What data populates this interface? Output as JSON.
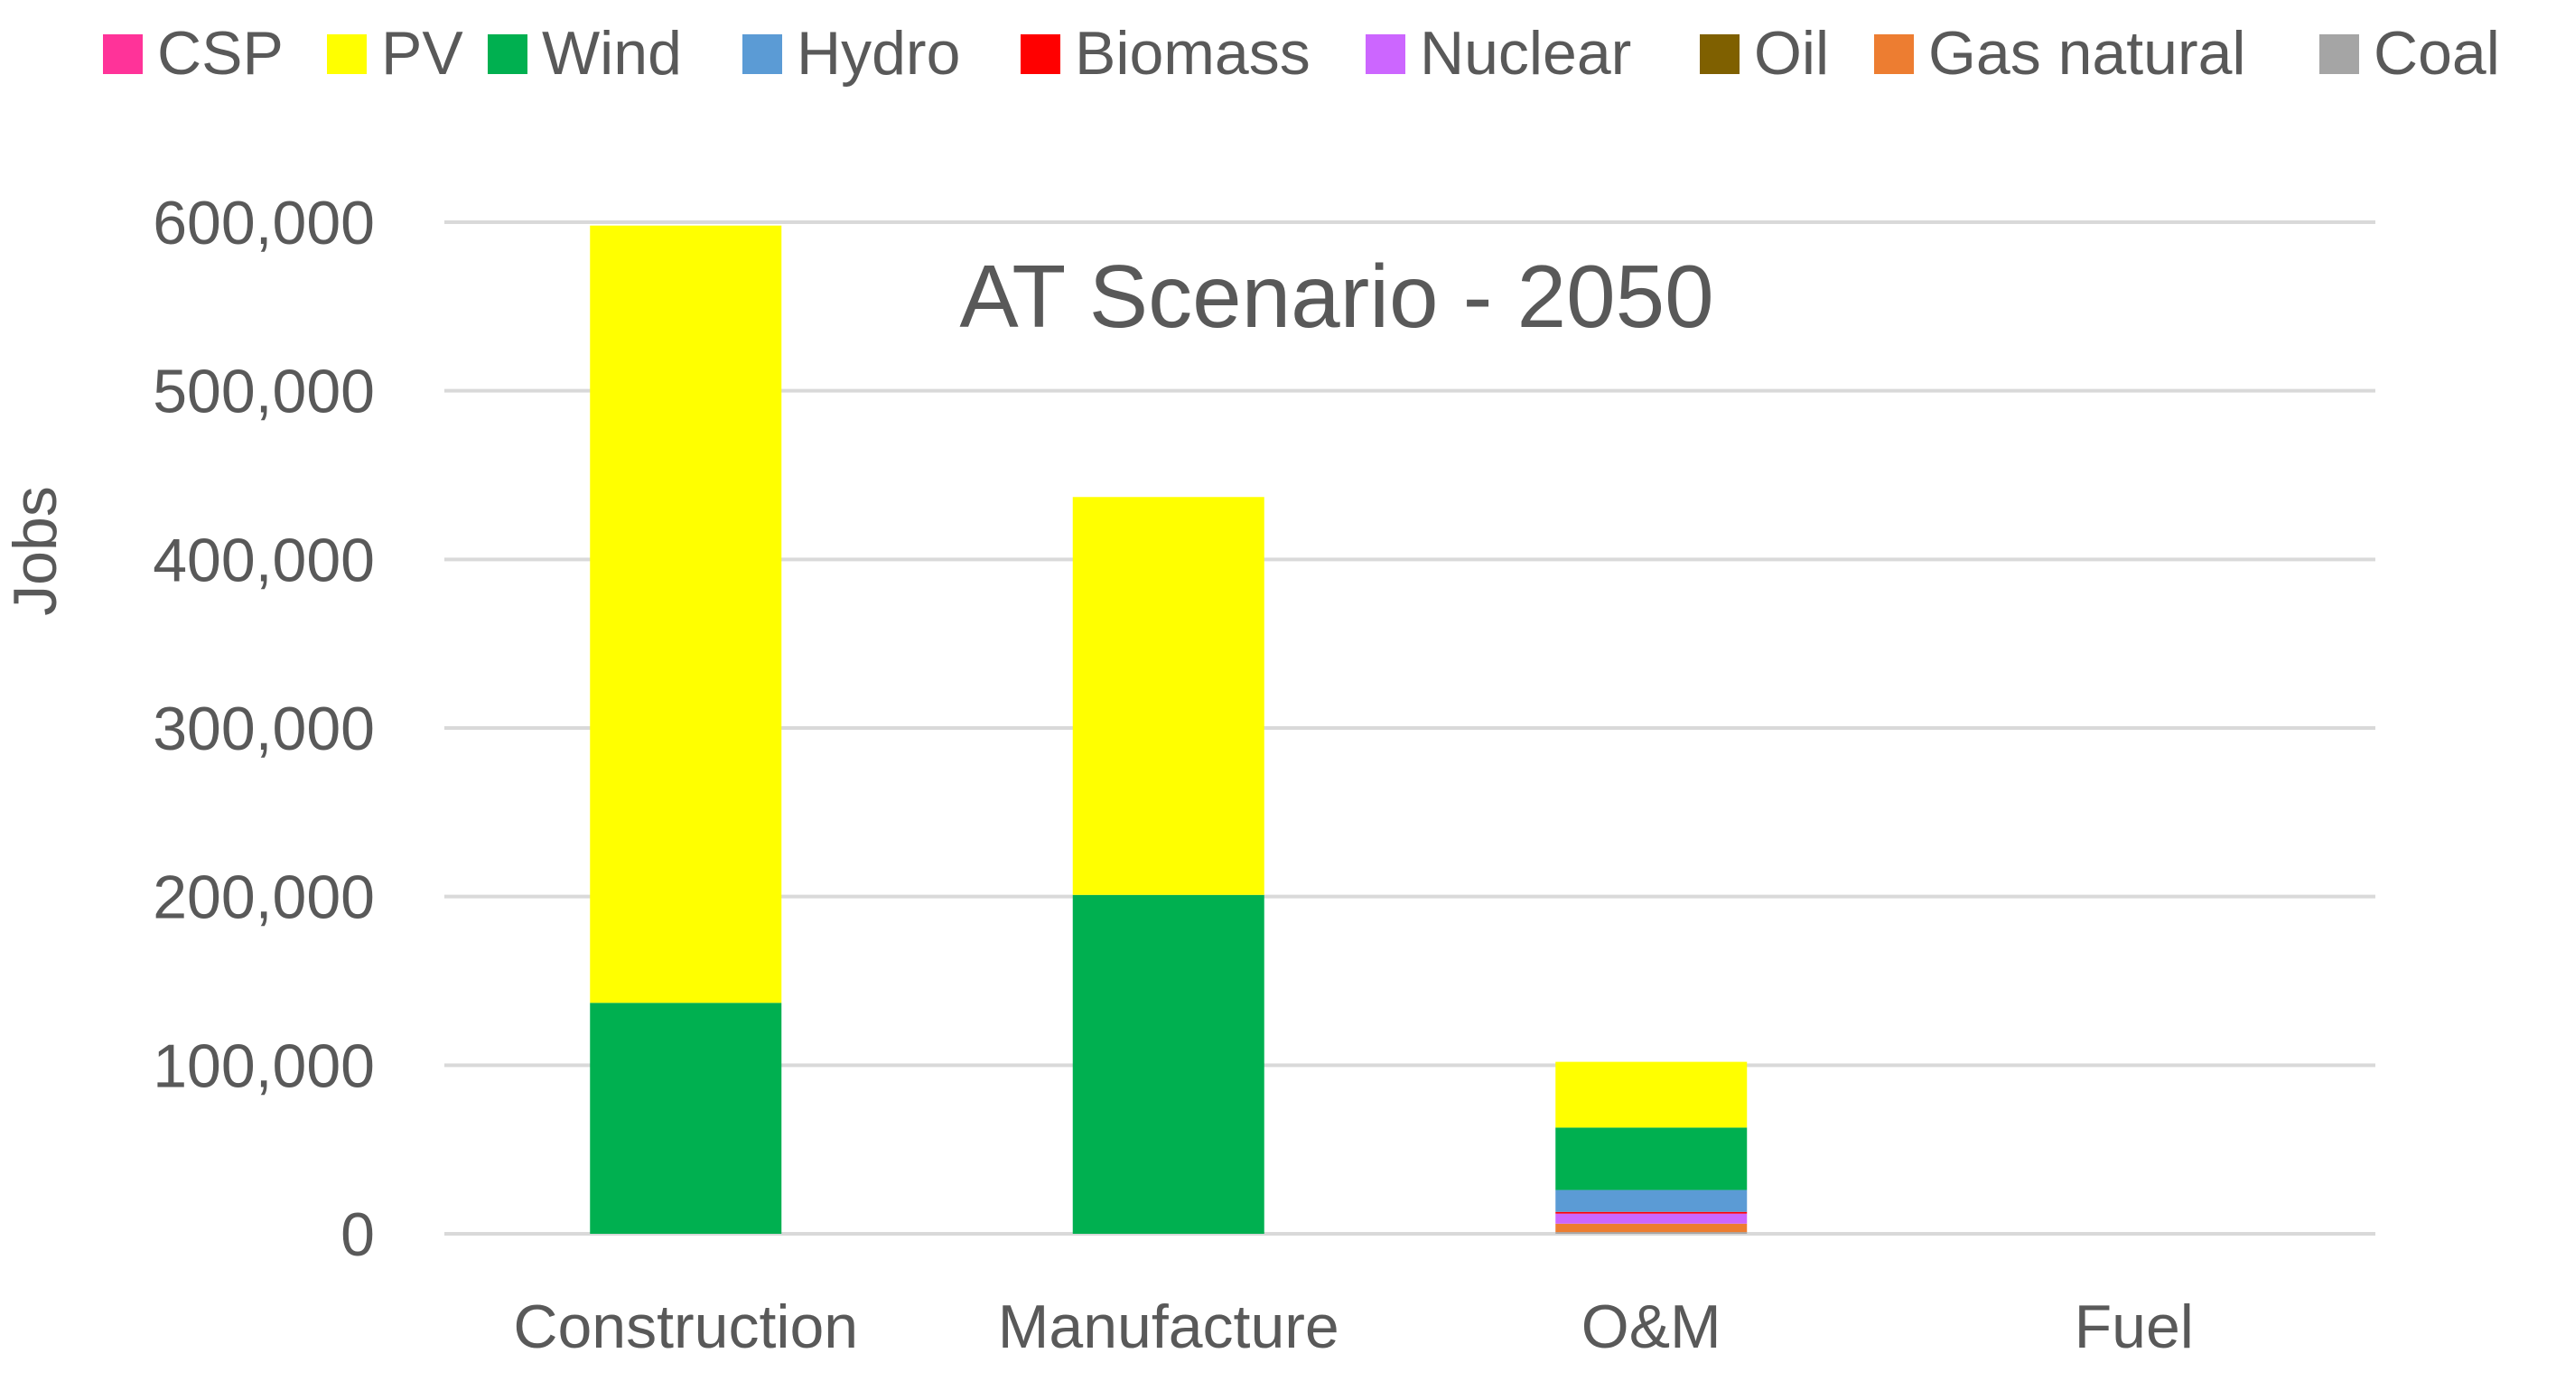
{
  "chart_data": {
    "type": "bar",
    "stacked": true,
    "title": "AT Scenario  - 2050",
    "xlabel": "",
    "ylabel": "Jobs",
    "ylim": [
      0,
      600000
    ],
    "yticks": [
      0,
      100000,
      200000,
      300000,
      400000,
      500000,
      600000
    ],
    "ytick_labels": [
      "0",
      "100,000",
      "200,000",
      "300,000",
      "400,000",
      "500,000",
      "600,000"
    ],
    "grid": true,
    "legend_position": "top",
    "categories": [
      "Construction",
      "Manufacture",
      "O&M",
      "Fuel"
    ],
    "series": [
      {
        "name": "CSP",
        "color": "#FF3399",
        "values": [
          0,
          0,
          0,
          0
        ]
      },
      {
        "name": "PV",
        "color": "#FFFF00",
        "values": [
          461000,
          236000,
          39000,
          0
        ]
      },
      {
        "name": "Wind",
        "color": "#00B050",
        "values": [
          137000,
          201000,
          37000,
          0
        ]
      },
      {
        "name": "Hydro",
        "color": "#5B9BD5",
        "values": [
          0,
          0,
          13000,
          0
        ]
      },
      {
        "name": "Biomass",
        "color": "#FF0000",
        "values": [
          0,
          0,
          1000,
          0
        ]
      },
      {
        "name": "Nuclear",
        "color": "#CC66FF",
        "values": [
          0,
          0,
          6000,
          0
        ]
      },
      {
        "name": "Oil",
        "color": "#7F6000",
        "values": [
          0,
          0,
          0,
          0
        ]
      },
      {
        "name": "Gas natural",
        "color": "#ED7D31",
        "values": [
          0,
          0,
          5000,
          0
        ]
      },
      {
        "name": "Coal",
        "color": "#A5A5A5",
        "values": [
          0,
          0,
          1000,
          0
        ]
      }
    ]
  }
}
